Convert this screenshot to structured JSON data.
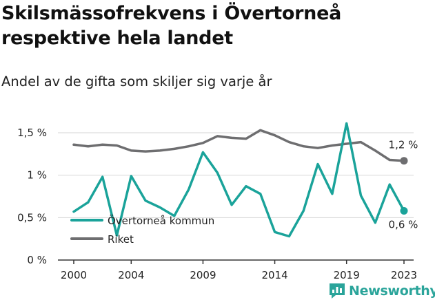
{
  "title": "Skilsmässofrekvens i Övertorneå respektive hela landet",
  "subtitle": "Andel av de gifta som skiljer sig varje år",
  "brand": "Newsworthy",
  "colors": {
    "local": "#1aa39a",
    "national": "#6e6e70",
    "grid": "#d6d6d6",
    "axis": "#333333"
  },
  "chart_data": {
    "type": "line",
    "x": [
      2000,
      2001,
      2002,
      2003,
      2004,
      2005,
      2006,
      2007,
      2008,
      2009,
      2010,
      2011,
      2012,
      2013,
      2014,
      2015,
      2016,
      2017,
      2018,
      2019,
      2020,
      2021,
      2022,
      2023
    ],
    "xticks": [
      2000,
      2004,
      2009,
      2014,
      2019,
      2023
    ],
    "xtick_labels": [
      "2000",
      "2004",
      "2009",
      "2014",
      "2019",
      "2023"
    ],
    "yticks": [
      0,
      0.5,
      1,
      1.5
    ],
    "ytick_labels": [
      "0 %",
      "0,5 %",
      "1 %",
      "1,5 %"
    ],
    "ylim": [
      0,
      1.6
    ],
    "series": [
      {
        "name": "Övertorneå kommun",
        "color": "#1aa39a",
        "values": [
          0.57,
          0.68,
          0.98,
          0.29,
          0.99,
          0.7,
          0.62,
          0.52,
          0.83,
          1.27,
          1.03,
          0.65,
          0.87,
          0.78,
          0.33,
          0.28,
          0.58,
          1.13,
          0.78,
          1.61,
          0.76,
          0.44,
          0.89,
          0.58
        ],
        "end_label": "0,6 %"
      },
      {
        "name": "Riket",
        "color": "#6e6e70",
        "values": [
          1.36,
          1.34,
          1.36,
          1.35,
          1.29,
          1.28,
          1.29,
          1.31,
          1.34,
          1.38,
          1.46,
          1.44,
          1.43,
          1.53,
          1.47,
          1.39,
          1.34,
          1.32,
          1.35,
          1.37,
          1.39,
          1.29,
          1.18,
          1.17
        ],
        "end_label": "1,2 %"
      }
    ],
    "legend": "inside-bottom-left",
    "grid": true
  }
}
